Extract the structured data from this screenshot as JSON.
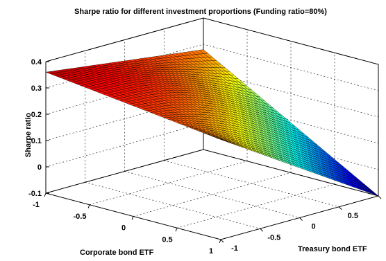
{
  "chart_data": {
    "type": "surface",
    "title": "Sharpe ratio for different investment proportions (Funding ratio=80%)",
    "xlabel": "Corporate bond ETF",
    "ylabel": "Treasury bond ETF",
    "zlabel": "Sharpe ratio",
    "xlim": [
      -1,
      1
    ],
    "ylim": [
      -1,
      1
    ],
    "zlim": [
      -0.1,
      0.4
    ],
    "x_ticks": [
      "-1",
      "-0.5",
      "0",
      "0.5",
      "1"
    ],
    "y_ticks": [
      "-1",
      "-0.5",
      "0",
      "0.5",
      "1"
    ],
    "z_ticks": [
      "-0.1",
      "0",
      "0.1",
      "0.2",
      "0.3",
      "0.4"
    ],
    "colormap": "jet",
    "grid": true,
    "surface_corners": [
      {
        "x": -1,
        "y": -1,
        "z": 0.36
      },
      {
        "x": -1,
        "y": 1,
        "z": 0.28
      },
      {
        "x": 1,
        "y": -1,
        "z": 0.28
      },
      {
        "x": 1,
        "y": 1,
        "z": -0.1
      }
    ]
  }
}
